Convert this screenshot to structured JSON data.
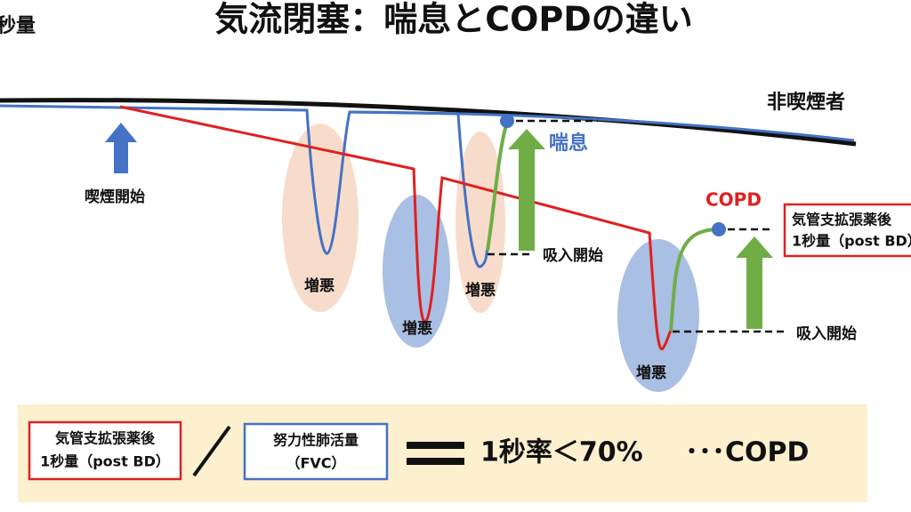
{
  "header": {
    "corner_label": "秒量",
    "title": "気流閉塞：喘息とCOPDの違い"
  },
  "diagram": {
    "non_smoker": "非喫煙者",
    "smoking_start": "喫煙開始",
    "asthma": "喘息",
    "copd": "COPD",
    "inhalation_start": [
      "吸入開始",
      "吸入開始"
    ],
    "exacerbations": [
      "増悪",
      "増悪",
      "増悪",
      "増悪"
    ],
    "side_box": [
      "気管支拡張薬後",
      "1秒量（post BD）"
    ]
  },
  "formula": {
    "numerator": [
      "気管支拡張薬後",
      "1秒量（post BD）"
    ],
    "denominator": [
      "努力性肺活量",
      "（FVC）"
    ],
    "result": "1秒率＜70%",
    "conclusion": "･･･COPD"
  }
}
